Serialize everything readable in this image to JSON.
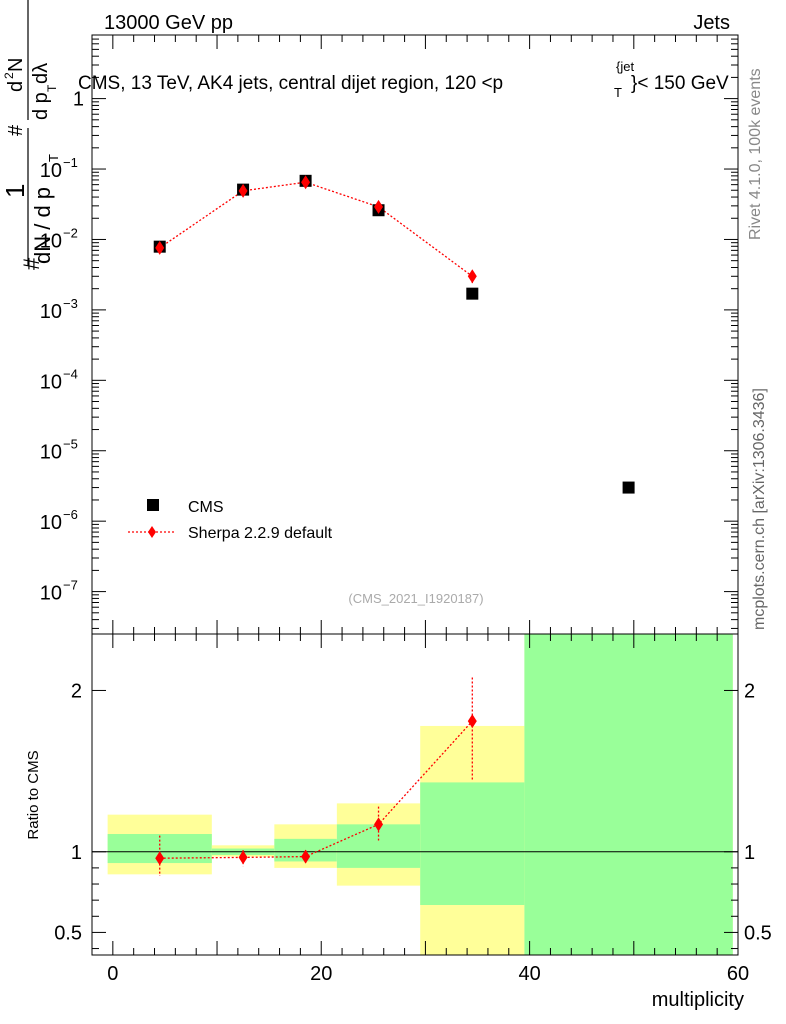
{
  "header": {
    "left": "13000 GeV pp",
    "right": "Jets"
  },
  "side_labels": {
    "rivet": "Rivet 4.1.0,  100k events",
    "site": "mcplots.cern.ch [arXiv:1306.3436]"
  },
  "chart_data": [
    {
      "type": "scatter",
      "title": "CMS, 13 TeV, AK4 jets, central dijet region, 120 <p",
      "title_sub": "T",
      "title_sup": "{jet",
      "title_tail": "}< 150 GeV",
      "ylabel": {
        "num_top": "1",
        "num_line2": "#",
        "denominator": "dN / d p",
        "den_sub": "T",
        "frac2_num": "d",
        "frac2_num_sup": "2",
        "frac2_num_tail": "N",
        "frac2_den": "d p",
        "frac2_den_sub": "T",
        "frac2_den_tail": " dλ",
        "hash_mid": "#",
        "hash_left": "#"
      },
      "yscale": "log",
      "ylim": [
        2.5e-08,
        8
      ],
      "xlim": [
        -2,
        60
      ],
      "ytick_labels": [
        {
          "value": 1,
          "label": "1"
        },
        {
          "value": 0.1,
          "base": "10",
          "exp": "−1"
        },
        {
          "value": 0.01,
          "base": "10",
          "exp": "−2"
        },
        {
          "value": 0.001,
          "base": "10",
          "exp": "−3"
        },
        {
          "value": 0.0001,
          "base": "10",
          "exp": "−4"
        },
        {
          "value": 1e-05,
          "base": "10",
          "exp": "−5"
        },
        {
          "value": 1e-06,
          "base": "10",
          "exp": "−6"
        },
        {
          "value": 1e-07,
          "base": "10",
          "exp": "−7"
        }
      ],
      "series": [
        {
          "name": "CMS",
          "color": "#000000",
          "marker": "square",
          "x": [
            4.5,
            12.5,
            18.5,
            25.5,
            34.5,
            49.5
          ],
          "y": [
            0.0079,
            0.051,
            0.068,
            0.026,
            0.0017,
            3e-06
          ]
        },
        {
          "name": "Sherpa 2.2.9 default",
          "color": "#ff0000",
          "marker": "diamond",
          "line": "dotted",
          "x": [
            4.5,
            12.5,
            18.5,
            25.5,
            34.5
          ],
          "y": [
            0.0076,
            0.049,
            0.065,
            0.029,
            0.003
          ],
          "yerr_rel": [
            0.15,
            0.06,
            0.05,
            0.08,
            0.2
          ]
        }
      ],
      "legend": {
        "position": "bottom-left",
        "entries": [
          "CMS",
          "Sherpa 2.2.9 default"
        ]
      },
      "watermark": "(CMS_2021_I1920187)"
    },
    {
      "type": "ratio",
      "ylabel": "Ratio to CMS",
      "xlabel": "multiplicity",
      "ylim": [
        0.36,
        2.35
      ],
      "xlim": [
        -2,
        60
      ],
      "yticks": [
        0.5,
        1,
        2
      ],
      "ytick_labels": [
        "0.5",
        "1",
        "2"
      ],
      "xticks": [
        0,
        20,
        40,
        60
      ],
      "xtick_labels": [
        "0",
        "20",
        "40",
        "60"
      ],
      "bands": [
        {
          "x0": -0.5,
          "x1": 9.5,
          "yellow": [
            0.86,
            1.23
          ],
          "green": [
            0.93,
            1.11
          ]
        },
        {
          "x0": 9.5,
          "x1": 15.5,
          "yellow": [
            0.97,
            1.04
          ],
          "green": [
            0.98,
            1.02
          ]
        },
        {
          "x0": 15.5,
          "x1": 21.5,
          "yellow": [
            0.9,
            1.17
          ],
          "green": [
            0.94,
            1.08
          ]
        },
        {
          "x0": 21.5,
          "x1": 29.5,
          "yellow": [
            0.79,
            1.3
          ],
          "green": [
            0.9,
            1.17
          ]
        },
        {
          "x0": 29.5,
          "x1": 39.5,
          "yellow": [
            0.36,
            1.78
          ],
          "green": [
            0.67,
            1.43
          ]
        },
        {
          "x0": 39.5,
          "x1": 59.5,
          "yellow": [
            0.36,
            2.35
          ],
          "green": [
            0.36,
            2.35
          ]
        }
      ],
      "band_colors": {
        "yellow": "#ffff99",
        "green": "#99ff99"
      },
      "series": [
        {
          "name": "Sherpa 2.2.9 default",
          "color": "#ff0000",
          "x": [
            4.5,
            12.5,
            18.5,
            25.5,
            34.5
          ],
          "y": [
            0.96,
            0.965,
            0.97,
            1.17,
            1.81
          ],
          "yerr": [
            [
              0.85,
              1.1
            ],
            [
              0.91,
              1.01
            ],
            [
              0.93,
              1.01
            ],
            [
              1.07,
              1.28
            ],
            [
              1.44,
              2.08
            ]
          ]
        }
      ]
    }
  ]
}
